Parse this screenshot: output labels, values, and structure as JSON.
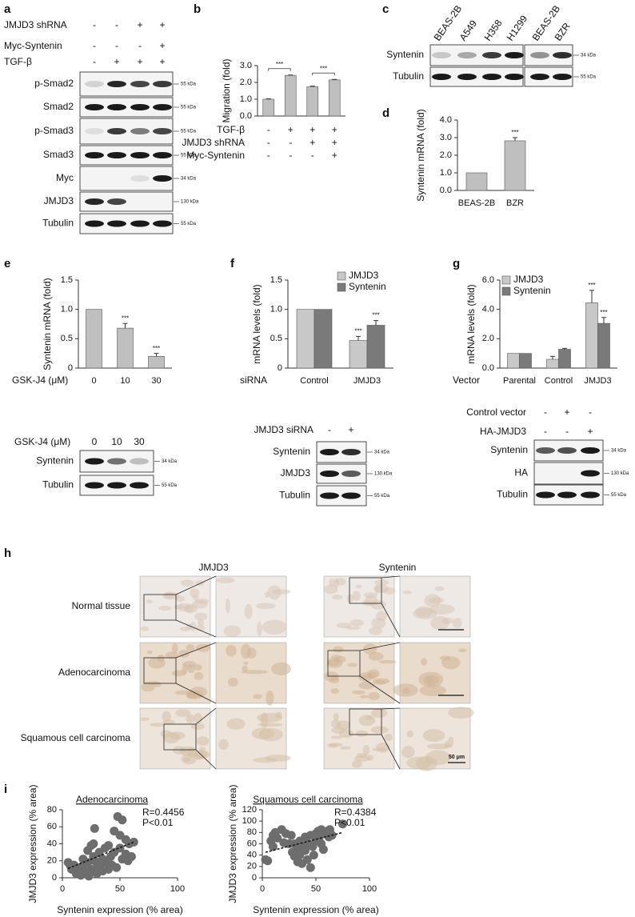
{
  "panel_labels": [
    "a",
    "b",
    "c",
    "d",
    "e",
    "f",
    "g",
    "h",
    "i"
  ],
  "blots": [
    {
      "conditions": [
        {
          "name": "JMJD3 shRNA",
          "marks": [
            "-",
            "-",
            "+",
            "+"
          ]
        },
        {
          "name": "Myc-Syntenin",
          "marks": [
            "-",
            "-",
            "-",
            "+"
          ]
        },
        {
          "name": "TGF-β",
          "marks": [
            "-",
            "+",
            "+",
            "+"
          ]
        }
      ],
      "rows": [
        {
          "name": "p-Smad2",
          "size": "55 kDa"
        },
        {
          "name": "Smad2",
          "size": "55 kDa"
        },
        {
          "name": "p-Smad3",
          "size": "55 kDa"
        },
        {
          "name": "Smad3",
          "size": "55 kDa"
        },
        {
          "name": "Myc",
          "size": "34 kDa"
        },
        {
          "name": "JMJD3",
          "size": "130 kDa"
        },
        {
          "name": "Tubulin",
          "size": "55 kDa"
        }
      ]
    },
    {
      "lanes": [
        "BEAS-2B",
        "A549",
        "H358",
        "H1299",
        "BEAS-2B",
        "BZR"
      ],
      "rows": [
        {
          "name": "Syntenin",
          "size": "34 kDa"
        },
        {
          "name": "Tubulin",
          "size": "55 kDa"
        }
      ]
    },
    {
      "conditions": [
        {
          "name": "GSK-J4 (μM)",
          "marks": [
            "0",
            "10",
            "30"
          ]
        }
      ],
      "rows": [
        {
          "name": "Syntenin",
          "size": "34 kDa"
        },
        {
          "name": "Tubulin",
          "size": "55 kDa"
        }
      ]
    },
    {
      "conditions": [
        {
          "name": "JMJD3 siRNA",
          "marks": [
            "-",
            "+"
          ]
        }
      ],
      "rows": [
        {
          "name": "Syntenin",
          "size": "34 kDa"
        },
        {
          "name": "JMJD3",
          "size": "130 kDa"
        },
        {
          "name": "Tubulin",
          "size": "55 kDa"
        }
      ]
    },
    {
      "conditions": [
        {
          "name": "Control vector",
          "marks": [
            "-",
            "+",
            "-"
          ]
        },
        {
          "name": "HA-JMJD3",
          "marks": [
            "-",
            "-",
            "+"
          ]
        }
      ],
      "rows": [
        {
          "name": "Syntenin",
          "size": "34 kDa"
        },
        {
          "name": "HA",
          "size": "130 kDa"
        },
        {
          "name": "Tubulin",
          "size": "55 kDa"
        }
      ]
    }
  ],
  "chart_data": [
    {
      "type": "bar",
      "ylabel": "Migration (fold)",
      "categories": [
        null,
        null,
        null,
        null
      ],
      "bracket": true,
      "series": [
        {
          "color": "#bfbfbf",
          "values": [
            1.0,
            2.42,
            1.75,
            2.15
          ],
          "errors": [
            0.03,
            0.02,
            0.03,
            0.03
          ],
          "significance": [
            null,
            "***",
            null,
            "***"
          ]
        }
      ],
      "conditions": [
        {
          "name": "TGF-β",
          "marks": [
            "-",
            "+",
            "+",
            "+"
          ]
        },
        {
          "name": "JMJD3 shRNA",
          "marks": [
            "-",
            "-",
            "+",
            "+"
          ]
        },
        {
          "name": "Myc-Syntenin",
          "marks": [
            "-",
            "-",
            "-",
            "+"
          ]
        }
      ],
      "ylim": [
        0,
        3
      ],
      "yticks": [
        {
          "value": 0,
          "label": "0.0"
        },
        {
          "value": 1,
          "label": "1.0"
        },
        {
          "value": 2,
          "label": "2.0"
        },
        {
          "value": 3,
          "label": "3.0"
        }
      ]
    },
    {
      "type": "bar",
      "ylabel": "Syntenin mRNA (fold)",
      "categories": [
        "BEAS-2B",
        "BZR"
      ],
      "series": [
        {
          "color": "#bfbfbf",
          "values": [
            1.0,
            2.82
          ],
          "errors": [
            null,
            0.18
          ],
          "significance": [
            null,
            "***"
          ]
        }
      ],
      "ylim": [
        0,
        4
      ],
      "yticks": [
        {
          "value": 0,
          "label": "0.0"
        },
        {
          "value": 1,
          "label": "1.0"
        },
        {
          "value": 2,
          "label": "2.0"
        },
        {
          "value": 3,
          "label": "3.0"
        },
        {
          "value": 4,
          "label": "4.0"
        }
      ]
    },
    {
      "type": "bar",
      "ylabel": "Syntenin mRNA (fold)",
      "xlabel": "GSK-J4 (μM)",
      "categories": [
        "0",
        "10",
        "30"
      ],
      "series": [
        {
          "color": "#bfbfbf",
          "values": [
            1.0,
            0.68,
            0.2
          ],
          "errors": [
            null,
            0.08,
            0.05
          ],
          "significance": [
            null,
            "***",
            "***"
          ]
        }
      ],
      "ylim": [
        0,
        1.5
      ],
      "yticks": [
        0,
        0.5,
        {
          "value": 1,
          "label": "1.0"
        },
        1.5
      ]
    },
    {
      "type": "bar",
      "ylabel": "mRNA levels (fold)",
      "xlabel": "siRNA",
      "categories": [
        "Control",
        "JMJD3"
      ],
      "legend": true,
      "series": [
        {
          "name": "JMJD3",
          "color": "#c8c8c8",
          "values": [
            1.0,
            0.47
          ],
          "errors": [
            null,
            0.07
          ],
          "significance": [
            null,
            "***"
          ]
        },
        {
          "name": "Syntenin",
          "color": "#7a7a7a",
          "values": [
            1.0,
            0.73
          ],
          "errors": [
            null,
            0.08
          ],
          "significance": [
            null,
            "***"
          ]
        }
      ],
      "ylim": [
        0,
        1.5
      ],
      "yticks": [
        0,
        0.5,
        {
          "value": 1,
          "label": "1.0"
        },
        1.5
      ]
    },
    {
      "type": "bar",
      "ylabel": "mRNA levels (fold)",
      "xlabel": "Vector",
      "categories": [
        "Parental",
        "Control",
        "JMJD3"
      ],
      "legend": true,
      "series": [
        {
          "name": "JMJD3",
          "color": "#c8c8c8",
          "values": [
            1.0,
            0.6,
            4.45
          ],
          "errors": [
            null,
            0.2,
            0.85
          ],
          "significance": [
            null,
            null,
            "***"
          ]
        },
        {
          "name": "Syntenin",
          "color": "#7a7a7a",
          "values": [
            1.0,
            1.28,
            3.05
          ],
          "errors": [
            null,
            0.06,
            0.4
          ],
          "significance": [
            null,
            null,
            "***"
          ]
        }
      ],
      "ylim": [
        0,
        6
      ],
      "yticks": [
        {
          "value": 0,
          "label": "0.0"
        },
        {
          "value": 2,
          "label": "2.0"
        },
        {
          "value": 4,
          "label": "4.0"
        },
        {
          "value": 6,
          "label": "6.0"
        }
      ]
    },
    {
      "type": "scatter",
      "title": "Adenocarcinoma",
      "xlabel": "Syntenin expression (% area)",
      "ylabel": "JMJD3 expression (% area)",
      "color": "#6d6d6d",
      "x": [
        5,
        7,
        8,
        10,
        12,
        13,
        15,
        16,
        18,
        18,
        20,
        22,
        22,
        23,
        25,
        25,
        27,
        27,
        28,
        28,
        30,
        30,
        32,
        33,
        35,
        35,
        37,
        38,
        40,
        40,
        42,
        43,
        45,
        45,
        47,
        48,
        50,
        50,
        52,
        52,
        55,
        55,
        57,
        58,
        60,
        62
      ],
      "y": [
        18,
        14,
        10,
        15,
        5,
        12,
        8,
        3,
        22,
        14,
        6,
        32,
        18,
        2,
        38,
        10,
        40,
        25,
        20,
        58,
        12,
        5,
        30,
        15,
        8,
        22,
        35,
        18,
        10,
        38,
        25,
        15,
        55,
        30,
        12,
        72,
        50,
        35,
        22,
        68,
        28,
        45,
        20,
        40,
        25,
        42
      ],
      "trend": {
        "x": [
          5,
          62
        ],
        "y": [
          11,
          42
        ]
      },
      "annotations": [
        "R=0.4456",
        "P<0.01"
      ],
      "xlim": [
        0,
        100
      ],
      "xticks": [
        0,
        50,
        100
      ],
      "ylim": [
        0,
        80
      ],
      "yticks": [
        0,
        20,
        40,
        60,
        80
      ]
    },
    {
      "type": "scatter",
      "title": "Squamous cell carcinoma",
      "xlabel": "Syntenin expression (% area)",
      "ylabel": "JMJD3 expression (% area)",
      "color": "#6d6d6d",
      "x": [
        3,
        5,
        8,
        10,
        10,
        12,
        14,
        18,
        20,
        22,
        25,
        27,
        28,
        30,
        30,
        32,
        33,
        35,
        35,
        37,
        38,
        40,
        40,
        42,
        43,
        45,
        45,
        47,
        48,
        50,
        50,
        52,
        53,
        55,
        55,
        57,
        58,
        60,
        62,
        63,
        65,
        75
      ],
      "y": [
        32,
        30,
        65,
        55,
        75,
        80,
        70,
        85,
        62,
        78,
        60,
        75,
        45,
        38,
        60,
        50,
        28,
        65,
        40,
        25,
        55,
        72,
        48,
        32,
        60,
        18,
        75,
        55,
        40,
        78,
        65,
        82,
        70,
        60,
        85,
        50,
        80,
        82,
        72,
        85,
        75,
        95
      ],
      "trend": {
        "x": [
          3,
          75
        ],
        "y": [
          45,
          80
        ]
      },
      "annotations": [
        "R=0.4384",
        "P<0.01"
      ],
      "xlim": [
        0,
        100
      ],
      "xticks": [
        0,
        50,
        100
      ],
      "ylim": [
        0,
        120
      ],
      "yticks": [
        0,
        20,
        40,
        60,
        80,
        100,
        120
      ]
    }
  ],
  "histology": {
    "columns": [
      "JMJD3",
      "Syntenin"
    ],
    "rows": [
      "Normal tissue",
      "Adenocarcinoma",
      "Squamous cell carcinoma"
    ],
    "scale_bar": "50 μm"
  }
}
